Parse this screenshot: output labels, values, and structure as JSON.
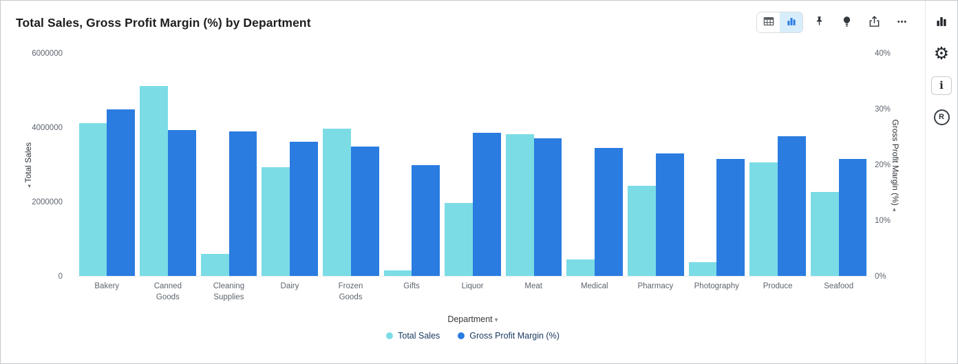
{
  "header": {
    "title": "Total Sales, Gross Profit Margin (%) by Department"
  },
  "toolbar": {
    "view_toggle": [
      {
        "icon": "table-view-icon",
        "active": false
      },
      {
        "icon": "chart-view-icon",
        "active": true
      }
    ],
    "actions": [
      "pin-icon",
      "lightbulb-icon",
      "export-icon",
      "more-options-icon"
    ]
  },
  "right_sidebar": {
    "icons": [
      "chart-type-icon",
      "settings-gear-icon",
      "info-icon",
      "r-logo-icon"
    ],
    "gear_glyph": "⚙",
    "info_letter": "i",
    "r_letter": "R"
  },
  "chart_data": {
    "type": "bar",
    "title": "Total Sales, Gross Profit Margin (%) by Department",
    "categories": [
      "Bakery",
      "Canned Goods",
      "Cleaning Supplies",
      "Dairy",
      "Frozen Goods",
      "Gifts",
      "Liquor",
      "Meat",
      "Medical",
      "Pharmacy",
      "Photography",
      "Produce",
      "Seafood"
    ],
    "series": [
      {
        "name": "Total Sales",
        "axis": "left",
        "color": "#7bdce6",
        "values": [
          4130000,
          5130000,
          600000,
          2930000,
          3980000,
          150000,
          1970000,
          3820000,
          440000,
          2430000,
          370000,
          3070000,
          2260000
        ]
      },
      {
        "name": "Gross Profit Margin (%)",
        "axis": "right",
        "color": "#2a7ce1",
        "values": [
          30,
          26.3,
          26,
          24.1,
          23.3,
          20,
          25.7,
          24.8,
          23,
          22.1,
          21.1,
          25.2,
          21
        ]
      }
    ],
    "left_axis": {
      "label": "Total Sales",
      "arrow": "◂",
      "ticks": [
        "0",
        "2000000",
        "4000000",
        "6000000"
      ],
      "min": 0,
      "max": 6000000
    },
    "right_axis": {
      "label": "Gross Profit Margin (%)",
      "arrow": "◂",
      "ticks": [
        "0%",
        "10%",
        "20%",
        "30%",
        "40%"
      ],
      "min": 0,
      "max": 40
    },
    "x_axis": {
      "label": "Department",
      "caret": "▾"
    },
    "grid": false,
    "legend_position": "bottom"
  }
}
